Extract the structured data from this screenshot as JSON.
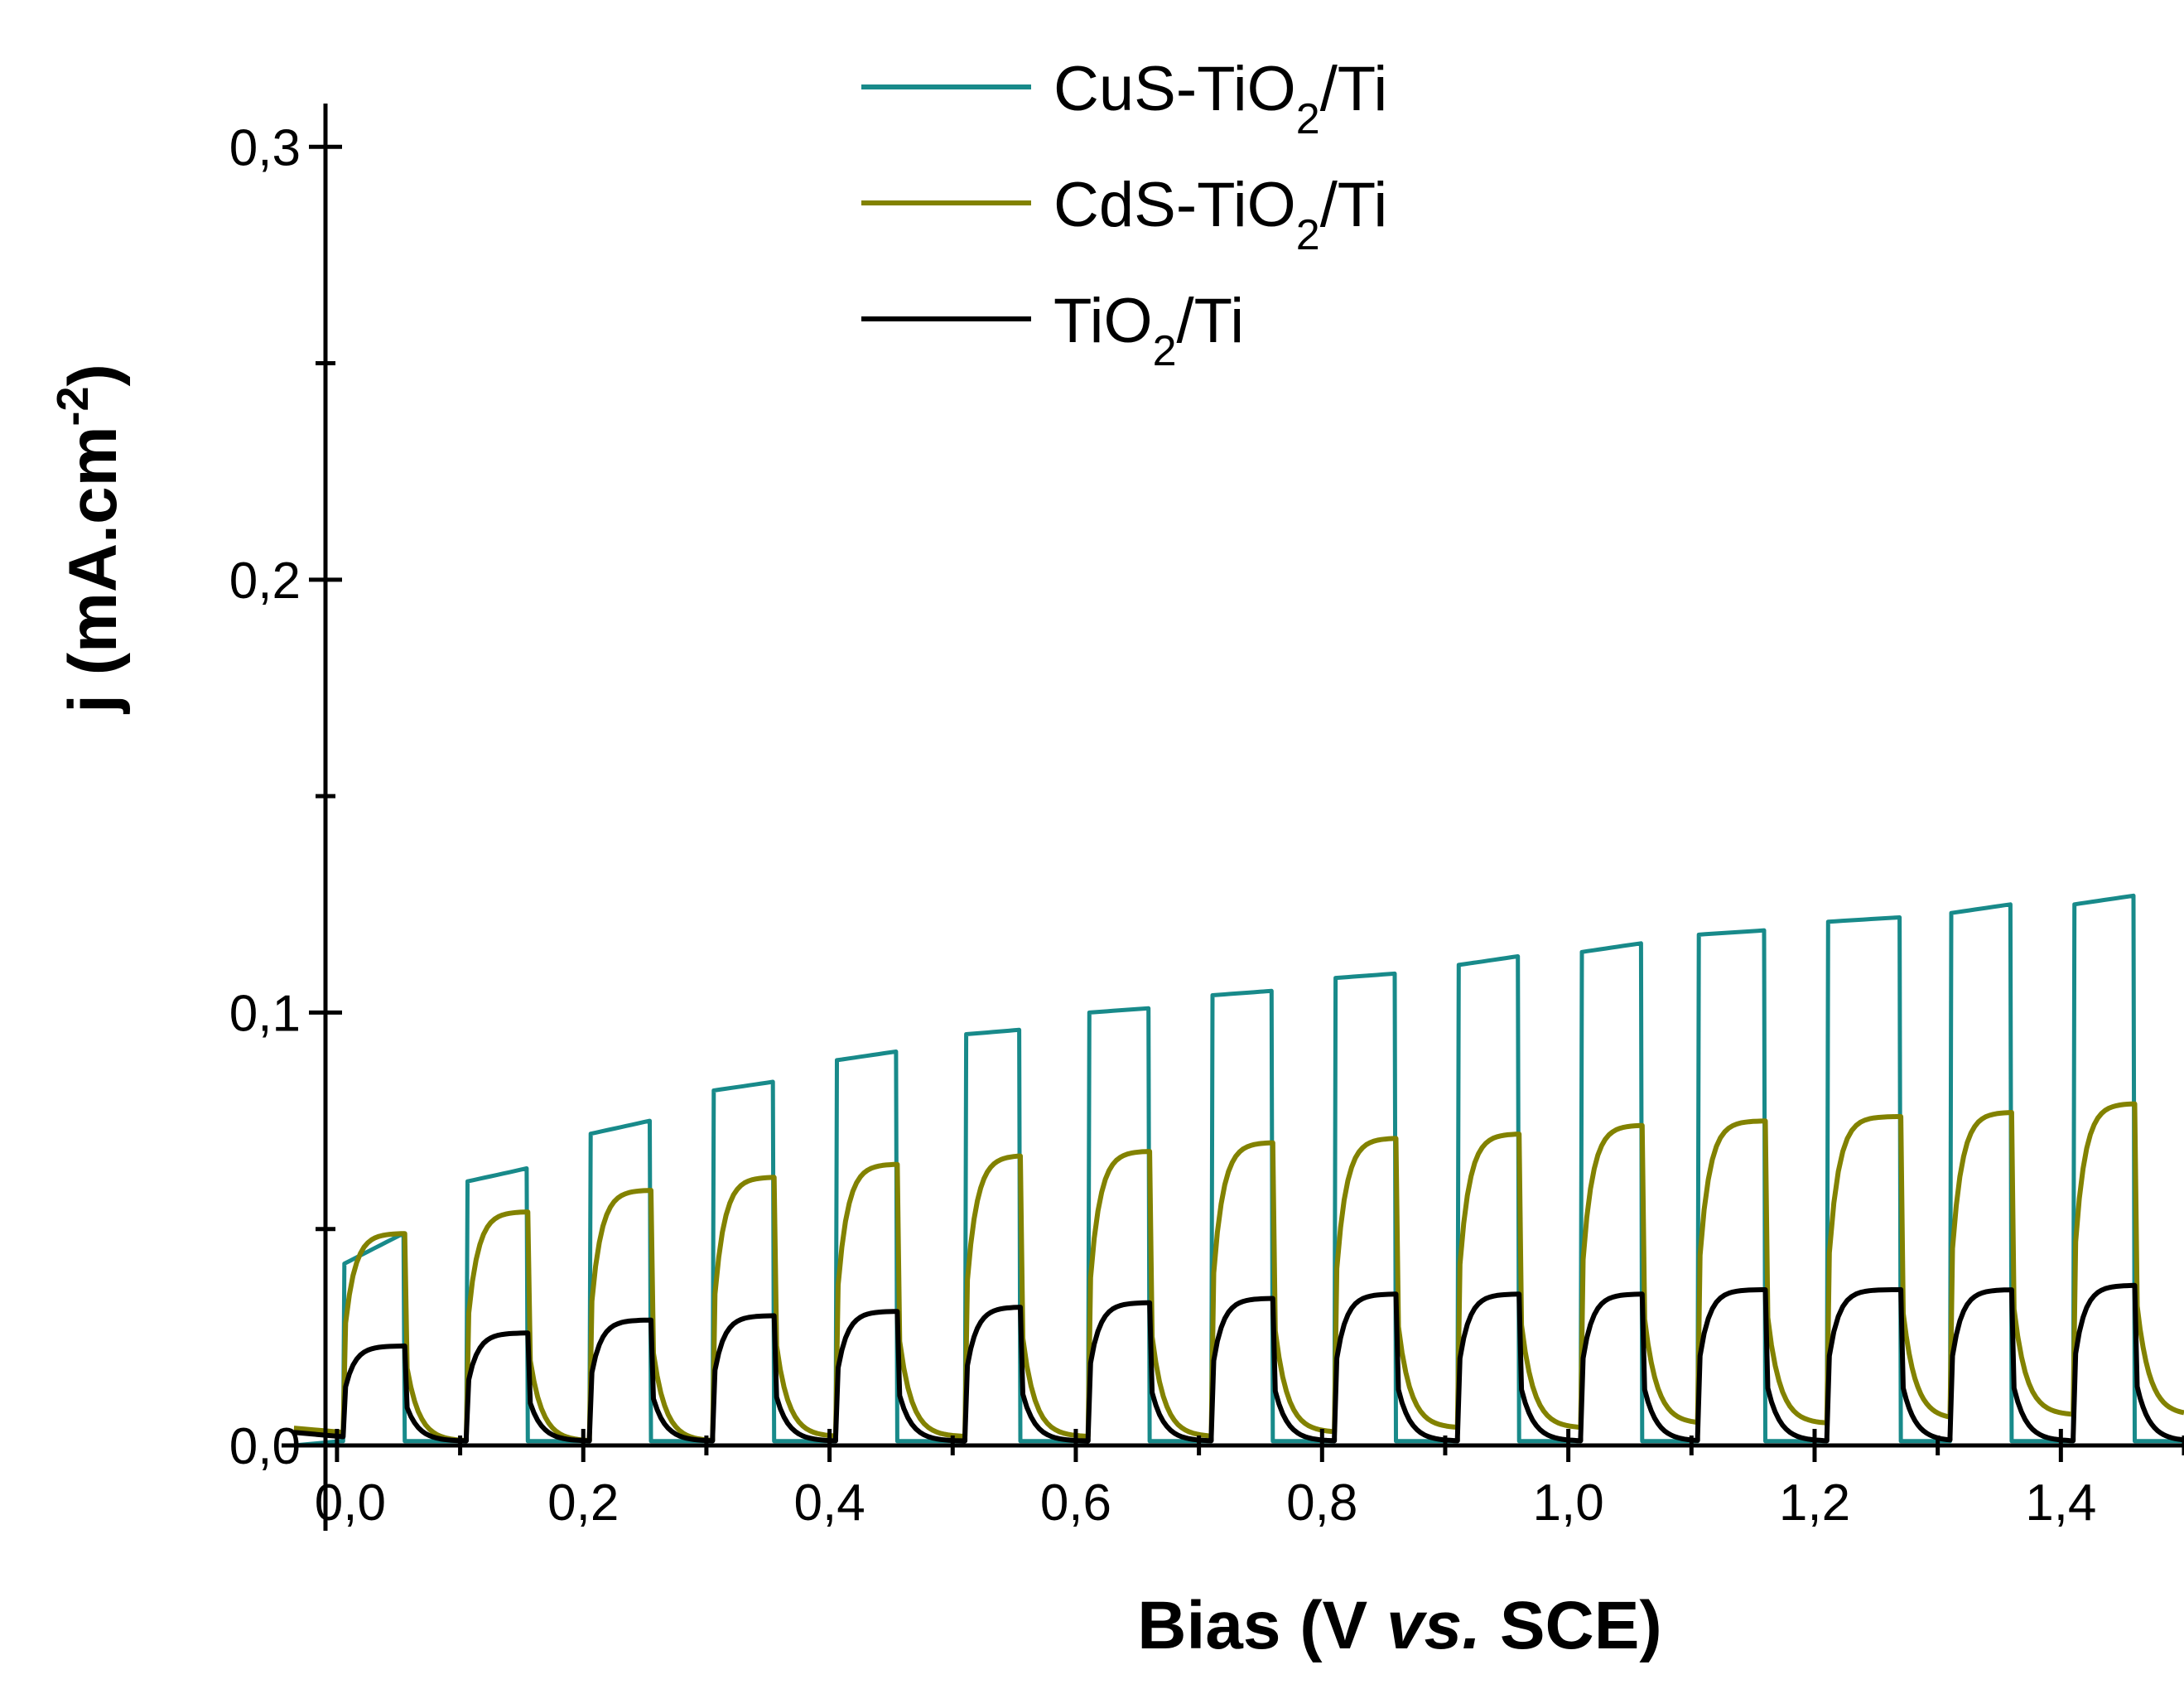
{
  "chart_data": {
    "type": "line",
    "title": "",
    "xlabel": {
      "prefix": "Bias (V ",
      "italic": "vs.",
      "suffix": " SCE)"
    },
    "ylabel": {
      "main": "j (mA.cm",
      "sup": "-2",
      "close": ")"
    },
    "xlim": [
      -0.045,
      1.5
    ],
    "ylim": [
      0.0,
      0.31
    ],
    "x_ticks": [
      {
        "value": 0.0,
        "label": "0,0"
      },
      {
        "value": 0.2,
        "label": "0,2"
      },
      {
        "value": 0.4,
        "label": "0,4"
      },
      {
        "value": 0.6,
        "label": "0,6"
      },
      {
        "value": 0.8,
        "label": "0,8"
      },
      {
        "value": 1.0,
        "label": "1,0"
      },
      {
        "value": 1.2,
        "label": "1,2"
      },
      {
        "value": 1.4,
        "label": "1,4"
      }
    ],
    "x_minor_ticks": [
      0.1,
      0.3,
      0.5,
      0.7,
      0.9,
      1.1,
      1.3,
      1.5
    ],
    "y_ticks": [
      {
        "value": 0.0,
        "label": "0,0"
      },
      {
        "value": 0.1,
        "label": "0,1"
      },
      {
        "value": 0.2,
        "label": "0,2"
      },
      {
        "value": 0.3,
        "label": "0,3"
      }
    ],
    "y_minor_ticks": [
      0.05,
      0.15,
      0.25
    ],
    "grid": false,
    "legend_position": "top-center",
    "pulse_on_starts": [
      0.005,
      0.105,
      0.205,
      0.305,
      0.405,
      0.51,
      0.61,
      0.71,
      0.81,
      0.91,
      1.01,
      1.105,
      1.21,
      1.31,
      1.41
    ],
    "pulse_on_ends": [
      0.055,
      0.155,
      0.255,
      0.355,
      0.455,
      0.555,
      0.66,
      0.76,
      0.86,
      0.96,
      1.06,
      1.16,
      1.27,
      1.36,
      1.46
    ],
    "series": [
      {
        "name": "CuS-TiO",
        "sub": "2",
        "suffix": "/Ti",
        "color": "#188a8a",
        "style": "square",
        "baseline": 0.001,
        "on_start": [
          0.042,
          0.061,
          0.072,
          0.082,
          0.089,
          0.095,
          0.1,
          0.104,
          0.108,
          0.111,
          0.114,
          0.118,
          0.121,
          0.123,
          0.125
        ],
        "on_end": [
          0.049,
          0.064,
          0.075,
          0.084,
          0.091,
          0.096,
          0.101,
          0.105,
          0.109,
          0.113,
          0.116,
          0.119,
          0.122,
          0.125,
          0.127
        ]
      },
      {
        "name": "CdS-TiO",
        "sub": "2",
        "suffix": "/Ti",
        "color": "#828200",
        "style": "rise",
        "on_plateau": [
          0.049,
          0.054,
          0.059,
          0.062,
          0.065,
          0.067,
          0.068,
          0.07,
          0.071,
          0.072,
          0.074,
          0.075,
          0.076,
          0.077,
          0.079
        ],
        "off_floor": [
          0.002,
          0.001,
          0.001,
          0.001,
          0.002,
          0.002,
          0.002,
          0.002,
          0.003,
          0.004,
          0.004,
          0.005,
          0.005,
          0.006,
          0.007
        ]
      },
      {
        "name": "TiO",
        "sub": "2",
        "suffix": "/Ti",
        "color": "#000000",
        "style": "rise",
        "on_plateau": [
          0.023,
          0.026,
          0.029,
          0.03,
          0.031,
          0.032,
          0.033,
          0.034,
          0.035,
          0.035,
          0.035,
          0.036,
          0.036,
          0.036,
          0.037
        ],
        "off_floor": [
          0.001,
          0.001,
          0.001,
          0.001,
          0.001,
          0.001,
          0.001,
          0.001,
          0.001,
          0.001,
          0.001,
          0.001,
          0.001,
          0.001,
          0.001
        ]
      }
    ]
  }
}
